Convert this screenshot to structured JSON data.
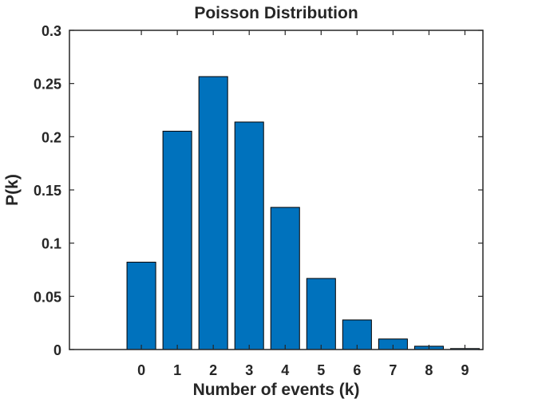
{
  "chart_data": {
    "type": "bar",
    "title": "Poisson Distribution",
    "xlabel": "Number of events (k)",
    "ylabel": "P(k)",
    "categories": [
      "0",
      "1",
      "2",
      "3",
      "4",
      "5",
      "6",
      "7",
      "8",
      "9"
    ],
    "x": [
      0,
      1,
      2,
      3,
      4,
      5,
      6,
      7,
      8,
      9
    ],
    "values": [
      0.0821,
      0.2052,
      0.2565,
      0.2138,
      0.1336,
      0.0668,
      0.0278,
      0.0099,
      0.0031,
      0.0009
    ],
    "xlim": [
      -2,
      9.5
    ],
    "ylim": [
      0,
      0.3
    ],
    "yticks": [
      0,
      0.05,
      0.1,
      0.15,
      0.2,
      0.25,
      0.3
    ],
    "ytick_labels": [
      "0",
      "0.05",
      "0.1",
      "0.15",
      "0.2",
      "0.25",
      "0.3"
    ],
    "grid": false,
    "colors": {
      "bar_fill": "#0072BD",
      "bar_edge": "#000000",
      "axis": "#262626",
      "background": "#ffffff"
    }
  }
}
